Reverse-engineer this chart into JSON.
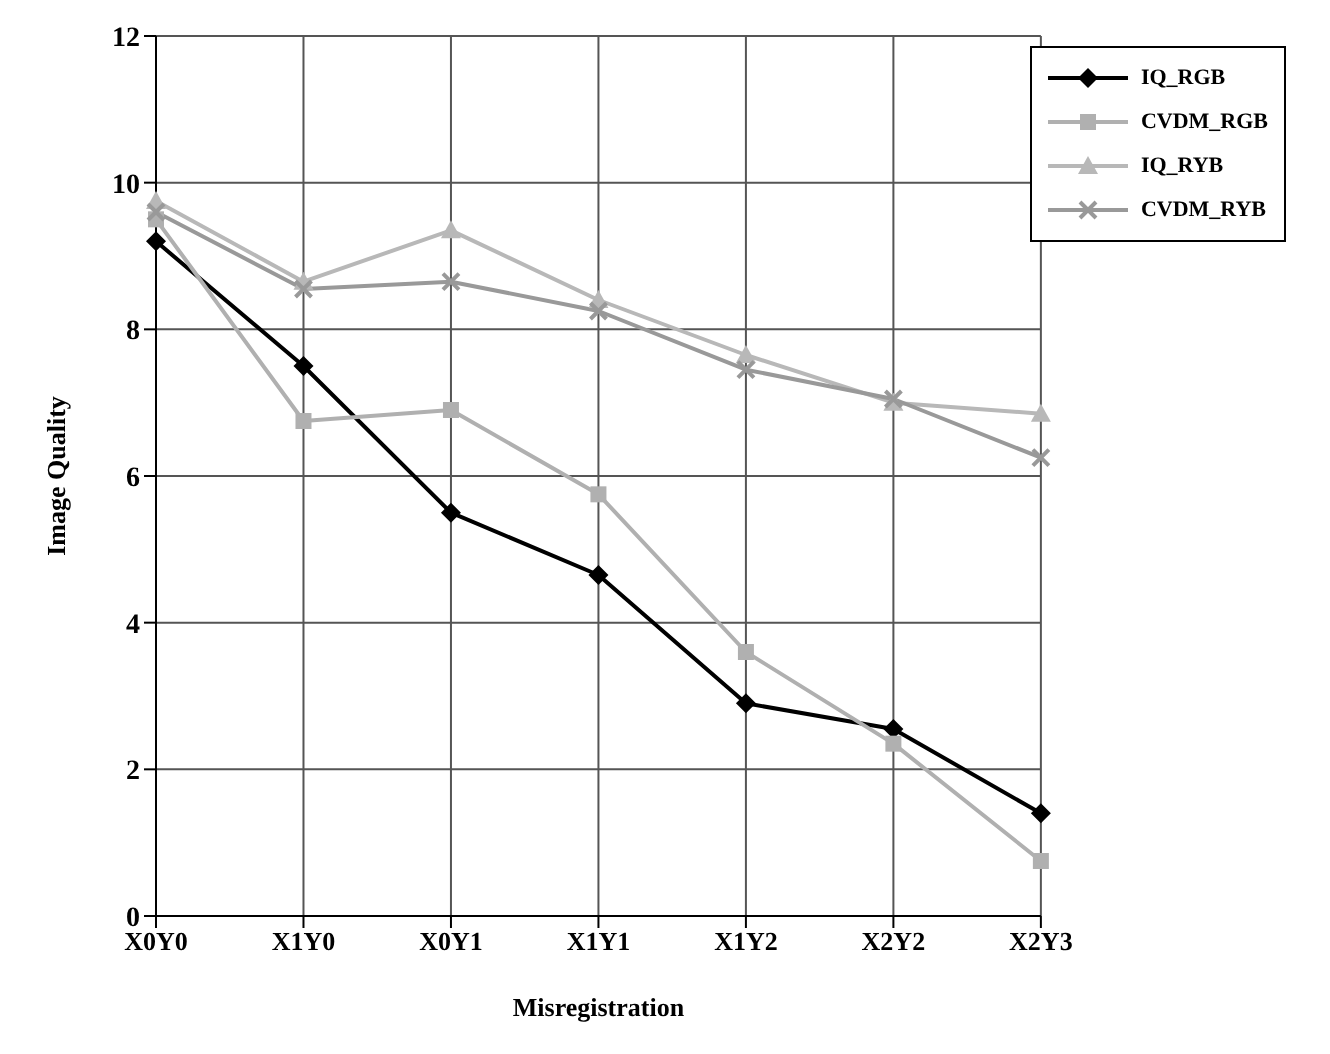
{
  "chart_data": {
    "type": "line",
    "xlabel": "Misregistration",
    "ylabel": "Image Quality",
    "categories": [
      "X0Y0",
      "X1Y0",
      "X0Y1",
      "X1Y1",
      "X1Y2",
      "X2Y2",
      "X2Y3"
    ],
    "ylim": [
      0,
      12
    ],
    "yticks": [
      0,
      2,
      4,
      6,
      8,
      10,
      12
    ],
    "grid": true,
    "legend": "top right",
    "series": [
      {
        "name": "IQ_RGB",
        "color": "#000000",
        "marker": "diamond",
        "values": [
          9.2,
          7.5,
          5.5,
          4.65,
          2.9,
          2.55,
          1.4
        ]
      },
      {
        "name": "CVDM_RGB",
        "color": "#b0b0b0",
        "marker": "square",
        "values": [
          9.5,
          6.75,
          6.9,
          5.75,
          3.6,
          2.35,
          0.75
        ]
      },
      {
        "name": "IQ_RYB",
        "color": "#b8b8b8",
        "marker": "triangle",
        "values": [
          9.75,
          8.65,
          9.35,
          8.4,
          7.65,
          7.0,
          6.85
        ]
      },
      {
        "name": "CVDM_RYB",
        "color": "#999999",
        "marker": "cross",
        "values": [
          9.6,
          8.55,
          8.65,
          8.25,
          7.45,
          7.05,
          6.25
        ]
      }
    ]
  }
}
